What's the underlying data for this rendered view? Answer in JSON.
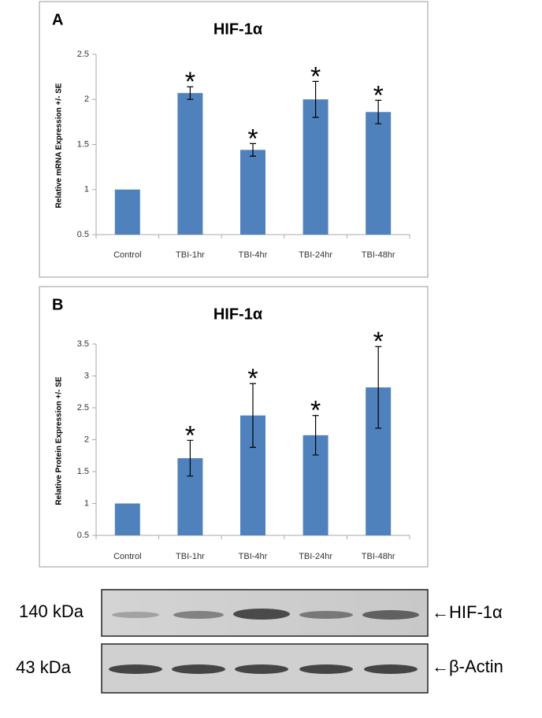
{
  "chart_data": [
    {
      "type": "bar",
      "panel": "A",
      "title": "HIF-1α",
      "ylabel": "Relative mRNA Expression +/- SE",
      "categories": [
        "Control",
        "TBI-1hr",
        "TBI-4hr",
        "TBI-24hr",
        "TBI-48hr"
      ],
      "values": [
        1,
        2.07,
        1.44,
        2.0,
        1.86
      ],
      "errors": [
        null,
        0.07,
        0.07,
        0.2,
        0.13
      ],
      "annotations": [
        null,
        "*",
        "*",
        "*",
        "*"
      ],
      "color": "#4f81bd",
      "ylim": [
        0.5,
        2.5
      ],
      "yticks": [
        0.5,
        1,
        1.5,
        2,
        2.5
      ]
    },
    {
      "type": "bar",
      "panel": "B",
      "title": "HIF-1α",
      "ylabel": "Relative Protein Expression +/- SE",
      "categories": [
        "Control",
        "TBI-1hr",
        "TBI-4hr",
        "TBI-24hr",
        "TBI-48hr"
      ],
      "values": [
        1,
        1.71,
        2.38,
        2.07,
        2.82
      ],
      "errors": [
        null,
        0.28,
        0.5,
        0.31,
        0.64
      ],
      "annotations": [
        null,
        "*",
        "*",
        "*",
        "*"
      ],
      "color": "#4f81bd",
      "ylim": [
        0.5,
        3.5
      ],
      "yticks": [
        0.5,
        1,
        1.5,
        2,
        2.5,
        3,
        3.5
      ]
    }
  ],
  "blot": {
    "rows": [
      {
        "size": "140 kDa",
        "label": "←HIF-1α"
      },
      {
        "size": "43 kDa",
        "label": "←β-Actin"
      }
    ]
  }
}
